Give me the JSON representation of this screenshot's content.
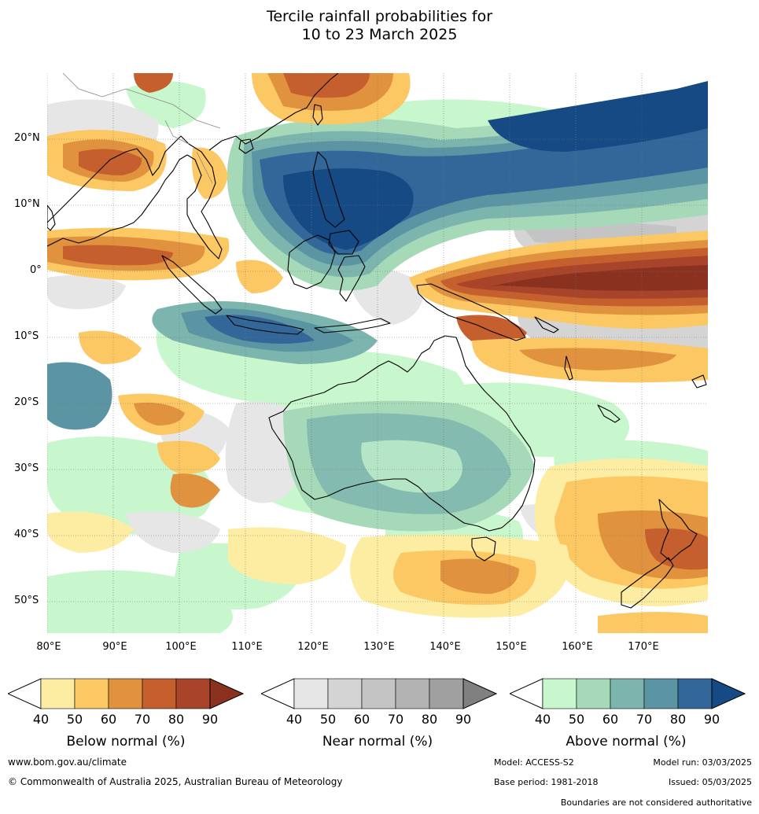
{
  "title_line1": "Tercile rainfall probabilities for",
  "title_line2": "10 to 23 March 2025",
  "lat_labels": [
    "20°N",
    "10°N",
    "0°",
    "10°S",
    "20°S",
    "30°S",
    "40°S",
    "50°S"
  ],
  "lon_labels": [
    "80°E",
    "90°E",
    "100°E",
    "110°E",
    "120°E",
    "130°E",
    "140°E",
    "150°E",
    "160°E",
    "170°E"
  ],
  "legends": [
    {
      "caption": "Below normal (%)",
      "ticks": [
        "40",
        "50",
        "60",
        "70",
        "80",
        "90"
      ],
      "colors": [
        "#ffffff",
        "#fdeda3",
        "#fcc863",
        "#e0923f",
        "#c65f2e",
        "#a8442a",
        "#8a3120"
      ]
    },
    {
      "caption": "Near normal (%)",
      "ticks": [
        "40",
        "50",
        "60",
        "70",
        "80",
        "90"
      ],
      "colors": [
        "#ffffff",
        "#e6e6e6",
        "#d4d4d4",
        "#c4c4c4",
        "#b3b3b3",
        "#a0a0a0",
        "#808080"
      ]
    },
    {
      "caption": "Above normal (%)",
      "ticks": [
        "40",
        "50",
        "60",
        "70",
        "80",
        "90"
      ],
      "colors": [
        "#ffffff",
        "#c9f7cd",
        "#a5d9b8",
        "#7cb5ae",
        "#5b94a3",
        "#336799",
        "#154a84"
      ]
    }
  ],
  "footer": {
    "website": "www.bom.gov.au/climate",
    "copyright": "© Commonwealth of Australia 2025, Australian Bureau of Meteorology",
    "model": "Model: ACCESS-S2",
    "model_run": "Model run: 03/03/2025",
    "base_period": "Base period: 1981-2018",
    "issued": "Issued: 05/03/2025",
    "disclaimer": "Boundaries are not considered authoritative"
  }
}
